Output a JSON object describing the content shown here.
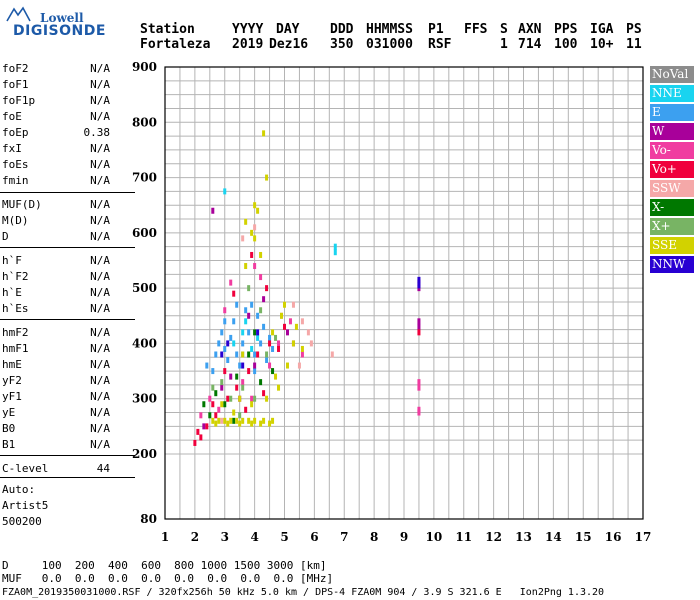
{
  "logo": {
    "lowell": "Lowell",
    "digisonde": "DIGISONDE"
  },
  "header": {
    "labels": [
      "Station",
      "YYYY",
      "DAY",
      "DDD",
      "HHMMSS",
      "P1",
      "FFS",
      "S",
      "AXN",
      "PPS",
      "IGA",
      "PS"
    ],
    "values": [
      "Fortaleza",
      "2019",
      "Dez16",
      "350",
      "031000",
      "RSF",
      "",
      "1",
      "714",
      "100",
      "10+",
      "11"
    ]
  },
  "params": {
    "group1": [
      {
        "name": "foF2",
        "value": "N/A"
      },
      {
        "name": "foF1",
        "value": "N/A"
      },
      {
        "name": "foF1p",
        "value": "N/A"
      },
      {
        "name": "foE",
        "value": "N/A"
      },
      {
        "name": "foEp",
        "value": "0.38"
      },
      {
        "name": "fxI",
        "value": "N/A"
      },
      {
        "name": "foEs",
        "value": "N/A"
      },
      {
        "name": "fmin",
        "value": "N/A"
      }
    ],
    "group2": [
      {
        "name": "MUF(D)",
        "value": "N/A"
      },
      {
        "name": "M(D)",
        "value": "N/A"
      },
      {
        "name": "D",
        "value": "N/A"
      }
    ],
    "group3": [
      {
        "name": "h`F",
        "value": "N/A"
      },
      {
        "name": "h`F2",
        "value": "N/A"
      },
      {
        "name": "h`E",
        "value": "N/A"
      },
      {
        "name": "h`Es",
        "value": "N/A"
      }
    ],
    "group4": [
      {
        "name": "hmF2",
        "value": "N/A"
      },
      {
        "name": "hmF1",
        "value": "N/A"
      },
      {
        "name": "hmE",
        "value": "N/A"
      },
      {
        "name": "yF2",
        "value": "N/A"
      },
      {
        "name": "yF1",
        "value": "N/A"
      },
      {
        "name": "yE",
        "value": "N/A"
      },
      {
        "name": "B0",
        "value": "N/A"
      },
      {
        "name": "B1",
        "value": "N/A"
      }
    ],
    "group5": [
      {
        "name": "C-level",
        "value": "44"
      }
    ]
  },
  "autoscaling": {
    "line1": "Auto:",
    "line2": "Artist5",
    "line3": "500200"
  },
  "legend": [
    {
      "label": "NoVal",
      "color": "#8c8c8c"
    },
    {
      "label": "NNE",
      "color": "#19d4f0"
    },
    {
      "label": "E",
      "color": "#3ca0f0"
    },
    {
      "label": "W",
      "color": "#a8009a"
    },
    {
      "label": "Vo-",
      "color": "#f03ca0"
    },
    {
      "label": "Vo+",
      "color": "#f0003c"
    },
    {
      "label": "SSW",
      "color": "#f5a8a8"
    },
    {
      "label": "X-",
      "color": "#007800"
    },
    {
      "label": "X+",
      "color": "#78b464"
    },
    {
      "label": "SSE",
      "color": "#d2d200"
    },
    {
      "label": "NNW",
      "color": "#2800d2"
    }
  ],
  "footer": {
    "d_row": "D     100  200  400  600  800 1000 1500 3000 [km]",
    "muf_row": "MUF   0.0  0.0  0.0  0.0  0.0  0.0  0.0  0.0 [MHz]",
    "info": "FZA0M_2019350031000.RSF / 320fx256h 50 kHz 5.0 km / DPS-4 FZA0M 904 / 3.9 S 321.6 E   Ion2Png 1.3.20"
  },
  "chart_data": {
    "type": "scatter",
    "title": "",
    "xlabel": "",
    "ylabel": "",
    "xlim": [
      1,
      17
    ],
    "ylim": [
      80,
      900
    ],
    "x_ticks": [
      "1",
      "2",
      "3",
      "4",
      "5",
      "6",
      "7",
      "8",
      "9",
      "10",
      "11",
      "12",
      "13",
      "14",
      "15",
      "16",
      "17"
    ],
    "y_ticks": [
      "80",
      "200",
      "300",
      "400",
      "500",
      "600",
      "700",
      "800",
      "900"
    ],
    "grid": true,
    "legend_position": "right",
    "series": [
      {
        "name": "NNE",
        "color": "#19d4f0",
        "points": [
          [
            6.7,
            575
          ],
          [
            6.7,
            565
          ],
          [
            3.0,
            675
          ],
          [
            3.3,
            400
          ],
          [
            3.6,
            420
          ],
          [
            3.9,
            390
          ],
          [
            4.1,
            410
          ],
          [
            3.7,
            440
          ]
        ]
      },
      {
        "name": "E",
        "color": "#3ca0f0",
        "points": [
          [
            2.4,
            360
          ],
          [
            2.7,
            380
          ],
          [
            3.0,
            390
          ],
          [
            3.2,
            410
          ],
          [
            3.4,
            380
          ],
          [
            3.6,
            400
          ],
          [
            3.8,
            420
          ],
          [
            4.0,
            380
          ],
          [
            4.2,
            400
          ],
          [
            4.4,
            370
          ],
          [
            4.6,
            390
          ],
          [
            2.9,
            420
          ],
          [
            3.3,
            440
          ],
          [
            3.7,
            460
          ],
          [
            4.1,
            450
          ],
          [
            3.5,
            360
          ],
          [
            3.1,
            370
          ],
          [
            2.6,
            350
          ],
          [
            4.3,
            430
          ],
          [
            3.9,
            470
          ],
          [
            3.4,
            470
          ],
          [
            2.8,
            400
          ],
          [
            4.5,
            410
          ],
          [
            3.0,
            440
          ],
          [
            3.6,
            380
          ],
          [
            4.0,
            350
          ]
        ]
      },
      {
        "name": "W",
        "color": "#a8009a",
        "points": [
          [
            9.5,
            510
          ],
          [
            9.5,
            500
          ],
          [
            9.5,
            440
          ],
          [
            9.5,
            430
          ],
          [
            2.6,
            640
          ],
          [
            5.3,
            400
          ],
          [
            3.2,
            340
          ],
          [
            4.0,
            360
          ],
          [
            3.8,
            450
          ],
          [
            2.9,
            320
          ],
          [
            3.5,
            300
          ],
          [
            4.3,
            480
          ],
          [
            2.3,
            250
          ],
          [
            5.1,
            420
          ]
        ]
      },
      {
        "name": "Vo-",
        "color": "#f03ca0",
        "points": [
          [
            9.5,
            330
          ],
          [
            9.5,
            320
          ],
          [
            9.5,
            280
          ],
          [
            9.5,
            275
          ],
          [
            3.2,
            510
          ],
          [
            4.2,
            520
          ],
          [
            5.6,
            380
          ],
          [
            2.5,
            300
          ],
          [
            3.6,
            330
          ],
          [
            4.5,
            360
          ],
          [
            2.8,
            280
          ],
          [
            3.9,
            300
          ],
          [
            4.8,
            400
          ],
          [
            3.0,
            460
          ],
          [
            5.2,
            440
          ],
          [
            2.2,
            270
          ],
          [
            4.0,
            540
          ]
        ]
      },
      {
        "name": "Vo+",
        "color": "#f0003c",
        "points": [
          [
            9.5,
            420
          ],
          [
            2.0,
            220
          ],
          [
            2.2,
            230
          ],
          [
            2.4,
            250
          ],
          [
            2.7,
            270
          ],
          [
            3.1,
            300
          ],
          [
            3.4,
            320
          ],
          [
            3.8,
            350
          ],
          [
            4.1,
            380
          ],
          [
            4.5,
            400
          ],
          [
            4.8,
            390
          ],
          [
            3.0,
            350
          ],
          [
            2.6,
            290
          ],
          [
            3.7,
            280
          ],
          [
            4.3,
            310
          ],
          [
            5.0,
            430
          ],
          [
            3.3,
            490
          ],
          [
            4.4,
            500
          ],
          [
            2.1,
            240
          ],
          [
            3.9,
            560
          ]
        ]
      },
      {
        "name": "SSW",
        "color": "#f5a8a8",
        "points": [
          [
            6.6,
            380
          ],
          [
            5.5,
            360
          ],
          [
            5.8,
            420
          ],
          [
            4.9,
            450
          ],
          [
            5.3,
            470
          ],
          [
            3.6,
            590
          ],
          [
            4.0,
            610
          ],
          [
            2.9,
            260
          ],
          [
            5.9,
            400
          ],
          [
            5.6,
            440
          ]
        ]
      },
      {
        "name": "X-",
        "color": "#007800",
        "points": [
          [
            3.0,
            290
          ],
          [
            3.4,
            340
          ],
          [
            4.2,
            330
          ],
          [
            2.7,
            310
          ],
          [
            3.8,
            380
          ],
          [
            4.6,
            350
          ],
          [
            2.5,
            270
          ],
          [
            3.3,
            260
          ],
          [
            4.0,
            420
          ],
          [
            2.3,
            290
          ]
        ]
      },
      {
        "name": "X+",
        "color": "#78b464",
        "points": [
          [
            3.2,
            300
          ],
          [
            3.6,
            320
          ],
          [
            4.4,
            380
          ],
          [
            2.9,
            330
          ],
          [
            4.0,
            300
          ],
          [
            3.5,
            270
          ],
          [
            4.7,
            410
          ],
          [
            2.6,
            320
          ],
          [
            3.8,
            500
          ],
          [
            4.2,
            460
          ]
        ]
      },
      {
        "name": "SSE",
        "color": "#d2d200",
        "points": [
          [
            2.6,
            260
          ],
          [
            2.8,
            260
          ],
          [
            3.0,
            260
          ],
          [
            3.2,
            260
          ],
          [
            3.4,
            260
          ],
          [
            3.6,
            260
          ],
          [
            3.8,
            260
          ],
          [
            4.0,
            260
          ],
          [
            4.3,
            260
          ],
          [
            4.6,
            260
          ],
          [
            2.7,
            255
          ],
          [
            3.1,
            255
          ],
          [
            3.5,
            255
          ],
          [
            3.9,
            255
          ],
          [
            4.2,
            255
          ],
          [
            4.5,
            255
          ],
          [
            3.3,
            275
          ],
          [
            3.9,
            290
          ],
          [
            4.4,
            300
          ],
          [
            4.8,
            320
          ],
          [
            5.1,
            360
          ],
          [
            5.3,
            400
          ],
          [
            5.6,
            390
          ],
          [
            4.9,
            450
          ],
          [
            4.6,
            420
          ],
          [
            4.1,
            640
          ],
          [
            4.0,
            650
          ],
          [
            4.3,
            780
          ],
          [
            3.7,
            540
          ],
          [
            4.2,
            560
          ],
          [
            3.9,
            600
          ],
          [
            3.5,
            300
          ],
          [
            4.7,
            340
          ],
          [
            5.4,
            430
          ],
          [
            5.0,
            470
          ],
          [
            3.6,
            380
          ],
          [
            2.9,
            290
          ],
          [
            4.4,
            700
          ],
          [
            4.0,
            590
          ],
          [
            3.7,
            620
          ]
        ]
      },
      {
        "name": "NNW",
        "color": "#2800d2",
        "points": [
          [
            9.5,
            515
          ],
          [
            9.5,
            505
          ],
          [
            3.1,
            400
          ],
          [
            3.6,
            360
          ],
          [
            2.9,
            380
          ],
          [
            4.1,
            420
          ]
        ]
      }
    ]
  }
}
